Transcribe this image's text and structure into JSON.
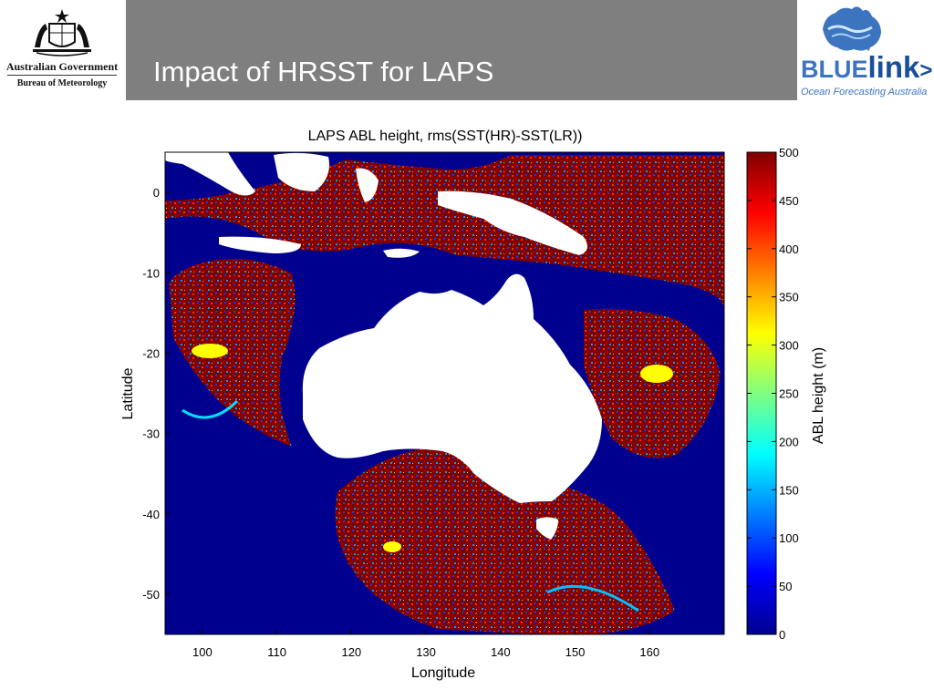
{
  "header": {
    "gov_line1": "Australian Government",
    "gov_line2": "Bureau of Meteorology",
    "slide_title": "Impact of HRSST for LAPS",
    "bluelink_blue": "BLUE",
    "bluelink_link": "link",
    "bluelink_arrow": ">",
    "bluelink_tagline": "Ocean Forecasting Australia"
  },
  "icons": {
    "gov_crest": "coat-of-arms-icon",
    "bluelink_logo": "australia-wave-map-icon"
  },
  "colors": {
    "title_bar": "#7f7f7f",
    "title_text": "#ffffff",
    "land": "#ffffff",
    "ocean_low": "#00008f",
    "high_value": "#800000",
    "bluelink_blue": "#3d74bf"
  },
  "chart_data": {
    "type": "heatmap",
    "title": "LAPS ABL height, rms(SST(HR)-SST(LR))",
    "xlabel": "Longitude",
    "ylabel": "Latitude",
    "xlim": [
      95,
      170
    ],
    "ylim": [
      -55,
      5
    ],
    "x_ticks": [
      100,
      110,
      120,
      130,
      140,
      150,
      160
    ],
    "y_ticks": [
      0,
      -10,
      -20,
      -30,
      -40,
      -50
    ],
    "colormap": "jet",
    "colorbar": {
      "label": "ABL height (m)",
      "min": 0,
      "max": 500,
      "ticks": [
        500,
        450,
        400,
        350,
        300,
        250,
        200,
        150,
        100,
        50,
        0
      ]
    },
    "grid": false,
    "land_masked": true
  }
}
